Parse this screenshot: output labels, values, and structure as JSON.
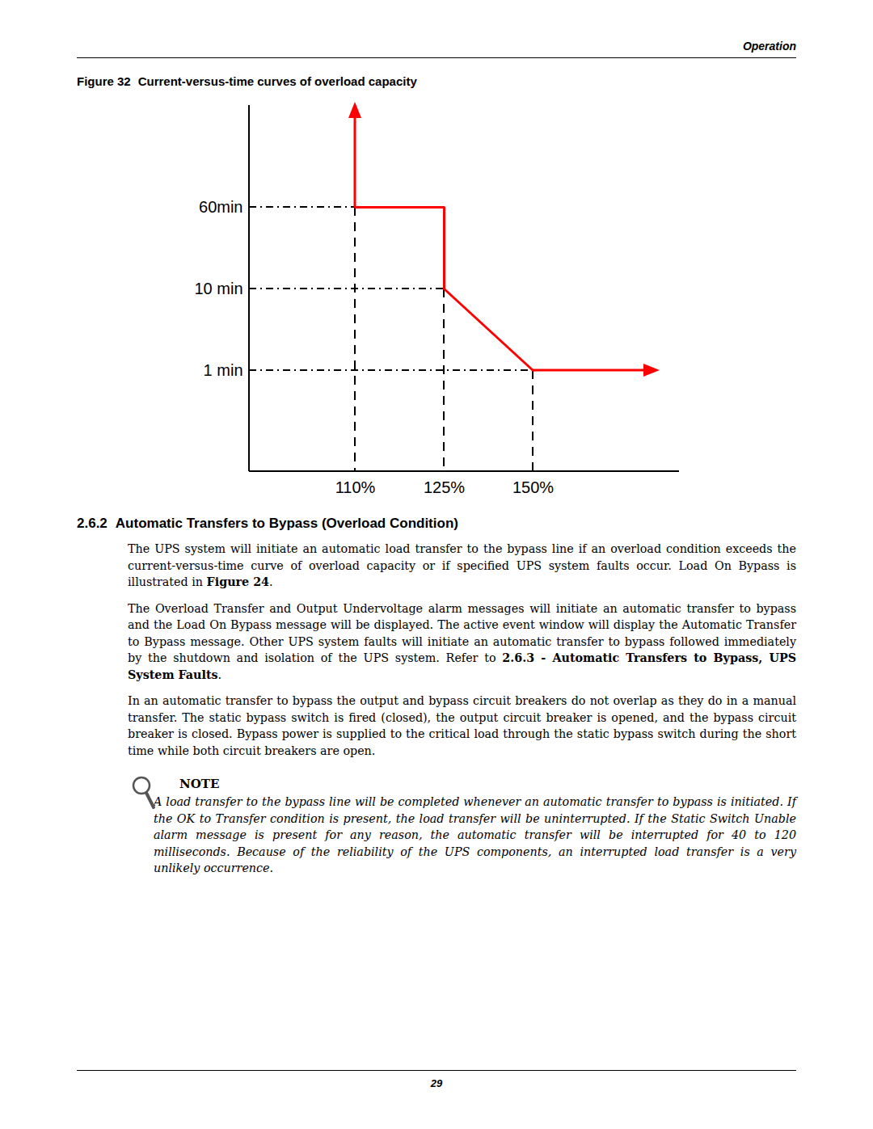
{
  "header": {
    "section": "Operation"
  },
  "caption": {
    "label": "Figure 32",
    "text": "Current-versus-time curves of overload capacity"
  },
  "chart_data": {
    "type": "line",
    "title": "Current-versus-time curves of overload capacity",
    "x_categories": [
      "110%",
      "125%",
      "150%"
    ],
    "y_categories": [
      "1 min",
      "10 min",
      "60min"
    ],
    "series": [
      {
        "color": "#ff0000",
        "x": [
          "110%",
          "125%",
          "125%",
          "150%"
        ],
        "y": [
          "60min",
          "60min",
          "10 min",
          "1 min"
        ]
      }
    ]
  },
  "section": {
    "number": "2.6.2",
    "title": "Automatic Transfers to Bypass (Overload Condition)"
  },
  "paragraphs": [
    [
      {
        "text": "The UPS system will initiate an automatic load transfer to the bypass line if an overload condition exceeds the current-versus-time curve of overload capacity or if specified UPS system faults occur. Load On Bypass is illustrated in ",
        "bold": false
      },
      {
        "text": "Figure 24",
        "bold": true
      },
      {
        "text": ".",
        "bold": false
      }
    ],
    [
      {
        "text": "The Overload Transfer and Output Undervoltage alarm messages will initiate an automatic transfer to bypass and the Load On Bypass message will be displayed. The active event window will display the Automatic Transfer to Bypass message. Other UPS system faults will initiate an automatic transfer to bypass followed immediately by the shutdown and isolation of the UPS system. Refer to ",
        "bold": false
      },
      {
        "text": "2.6.3 - Automatic Transfers to Bypass, UPS System Faults",
        "bold": true
      },
      {
        "text": ".",
        "bold": false
      }
    ],
    [
      {
        "text": "In an automatic transfer to bypass the output and bypass circuit breakers do not overlap as they do in a manual transfer. The static bypass switch is fired (closed), the output circuit breaker is opened, and the bypass circuit breaker is closed. Bypass power is supplied to the critical load through the static bypass switch during the short time while both circuit breakers are open.",
        "bold": false
      }
    ]
  ],
  "note": {
    "label": "NOTE",
    "text": "A load transfer to the bypass line will be completed whenever an automatic transfer to bypass is initiated. If the OK to Transfer condition is present, the load transfer will be uninterrupted. If the Static Switch Unable alarm message is present for any reason, the automatic transfer will be interrupted for 40 to 120 milliseconds. Because of the reliability of the UPS components, an interrupted load transfer is a very unlikely occurrence."
  },
  "footer": {
    "page": "29"
  }
}
